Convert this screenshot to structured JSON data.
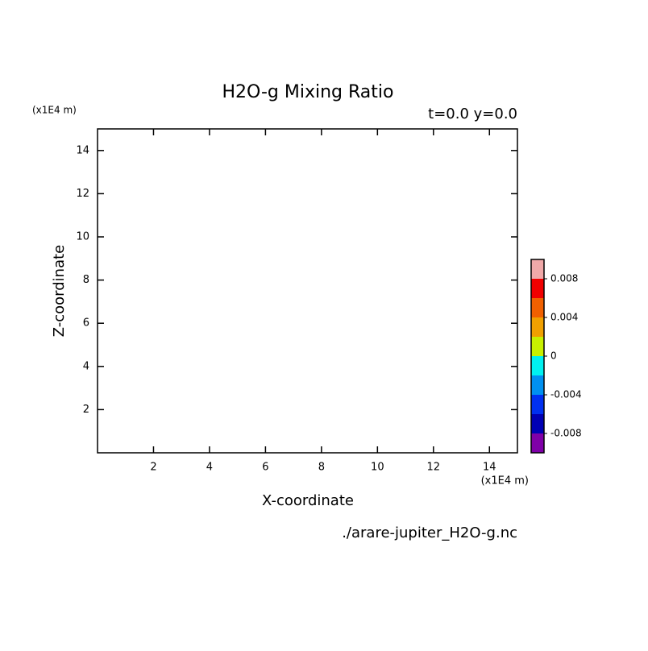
{
  "chart_data": {
    "type": "contour",
    "title": "H2O-g Mixing Ratio",
    "subtitle": "t=0.0 y=0.0",
    "x_label": "X-coordinate",
    "y_label": "Z-coordinate",
    "x_unit": "(x1E4 m)",
    "y_unit": "(x1E4 m)",
    "source": "./arare-jupiter_H2O-g.nc",
    "xlim": [
      0,
      15
    ],
    "xticks": [
      2,
      4,
      6,
      8,
      10,
      12,
      14
    ],
    "ylim": [
      0,
      15
    ],
    "yticks": [
      2,
      4,
      6,
      8,
      10,
      12,
      14
    ],
    "colorbar": {
      "clim": [
        -0.01,
        0.01
      ],
      "colors": [
        "#7f00a8",
        "#0000b4",
        "#0030f0",
        "#0090f0",
        "#00f0f0",
        "#c8f000",
        "#f0a000",
        "#f06000",
        "#f00000",
        "#f0a8a8"
      ],
      "ticks": [
        -0.008,
        -0.004,
        0,
        0.004,
        0.008
      ]
    }
  }
}
